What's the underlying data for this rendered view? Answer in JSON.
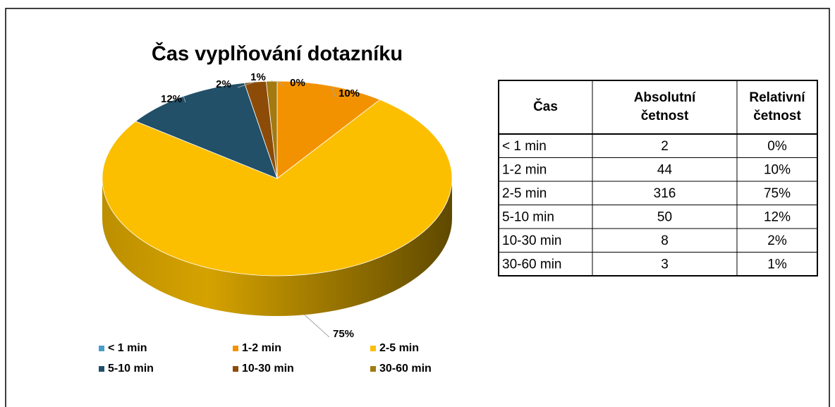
{
  "chart_data": {
    "type": "pie",
    "title": "Čas vyplňování dotazníku",
    "categories": [
      "< 1 min",
      "1-2 min",
      "2-5 min",
      "5-10 min",
      "10-30 min",
      "30-60 min"
    ],
    "values": [
      0,
      10,
      75,
      12,
      2,
      1
    ],
    "value_labels": [
      "0%",
      "10%",
      "75%",
      "12%",
      "2%",
      "1%"
    ],
    "colors": [
      "#4a9cc9",
      "#f39200",
      "#fbbf00",
      "#215068",
      "#8c4c08",
      "#a37a10"
    ],
    "legend": "bottom"
  },
  "table": {
    "header": [
      [
        "Čas"
      ],
      [
        "Absolutní",
        "četnost"
      ],
      [
        "Relativní",
        "četnost"
      ]
    ],
    "rows": [
      [
        "< 1 min",
        "2",
        "0%"
      ],
      [
        "1-2 min",
        "44",
        "10%"
      ],
      [
        "2-5 min",
        "316",
        "75%"
      ],
      [
        "5-10 min",
        "50",
        "12%"
      ],
      [
        "10-30 min",
        "8",
        "2%"
      ],
      [
        "30-60 min",
        "3",
        "1%"
      ]
    ]
  }
}
